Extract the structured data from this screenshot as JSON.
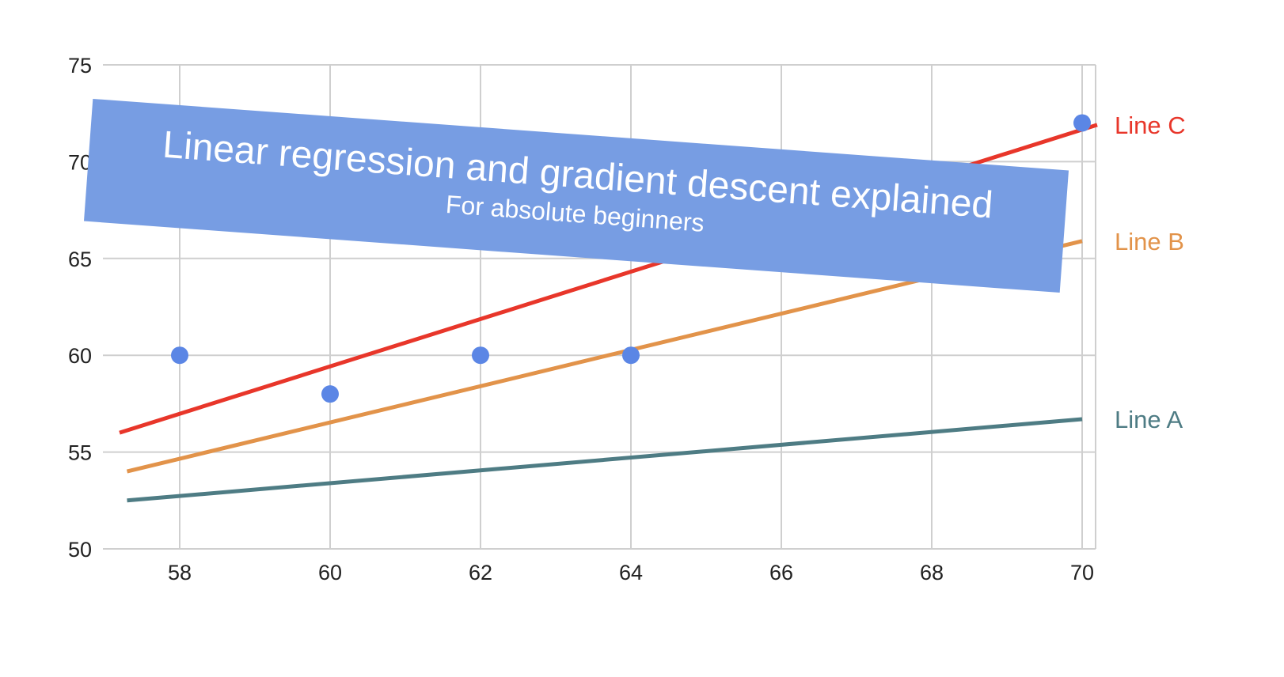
{
  "banner": {
    "title": "Linear regression and gradient descent explained",
    "subtitle": "For absolute beginners",
    "color": "#779de3"
  },
  "chart_data": {
    "type": "scatter",
    "xlim": [
      57,
      70.8
    ],
    "ylim": [
      50,
      75
    ],
    "x_ticks": [
      58,
      60,
      62,
      64,
      66,
      68,
      70
    ],
    "y_ticks": [
      50,
      55,
      60,
      65,
      70,
      75
    ],
    "grid": true,
    "points": {
      "color": "#5b86e5",
      "x": [
        58,
        60,
        62,
        64,
        70
      ],
      "y": [
        60,
        58,
        60,
        60,
        72
      ]
    },
    "lines": [
      {
        "name": "Line A",
        "color": "#4e7c84",
        "x": [
          57.3,
          70
        ],
        "y": [
          52.5,
          56.7
        ]
      },
      {
        "name": "Line B",
        "color": "#e2934a",
        "x": [
          57.3,
          70
        ],
        "y": [
          54.0,
          65.9
        ]
      },
      {
        "name": "Line C",
        "color": "#e8362a",
        "x": [
          57.2,
          70.2
        ],
        "y": [
          56.0,
          71.9
        ]
      }
    ]
  }
}
